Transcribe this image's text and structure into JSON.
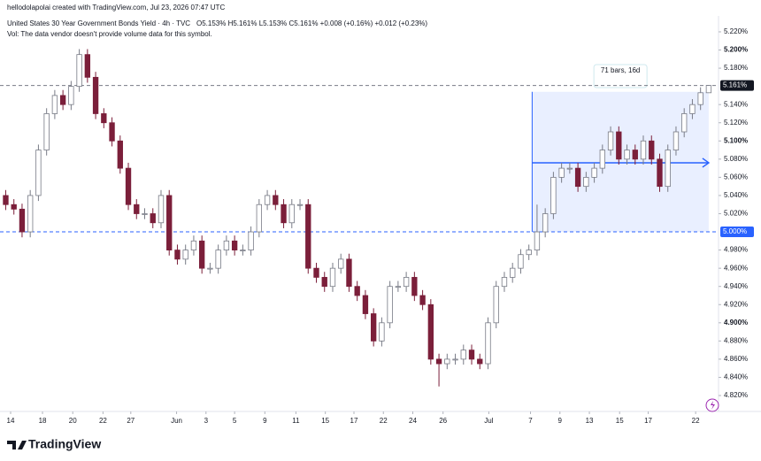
{
  "header": {
    "attribution": "hellodolapolai created with TradingView.com, Jul 23, 2026 07:47 UTC",
    "logo": "TradingView"
  },
  "chart_data": {
    "type": "candlestick",
    "title": "United States 30 Year Government Bonds Yield · 4h · TVC",
    "subtitle": "O5.153%  H5.161%  L5.153%  C5.161%  +0.008 (+0.16%)  +0.012 (+0.23%)",
    "note": "Vol: The data vendor doesn't provide volume data for this symbol.",
    "open": [
      5.04,
      5.03,
      5.025,
      5.0,
      5.04,
      5.09,
      5.13,
      5.15,
      5.14,
      5.16,
      5.195,
      5.17,
      5.13,
      5.12,
      5.1,
      5.07,
      5.03,
      5.02,
      5.02,
      5.01,
      5.04,
      4.98,
      4.97,
      4.98,
      4.99,
      4.96,
      4.96,
      4.98,
      4.99,
      4.98,
      4.98,
      5.0,
      5.03,
      5.04,
      5.03,
      5.01,
      5.03,
      5.03,
      4.96,
      4.95,
      4.94,
      4.96,
      4.97,
      4.94,
      4.93,
      4.91,
      4.88,
      4.9,
      4.94,
      4.94,
      4.95,
      4.93,
      4.92,
      4.86,
      4.855,
      4.86,
      4.86,
      4.87,
      4.86,
      4.855,
      4.9,
      4.94,
      4.95,
      4.96,
      4.975,
      4.98,
      5.0,
      5.02,
      5.06,
      5.07,
      5.07,
      5.05,
      5.06,
      5.07,
      5.09,
      5.11,
      5.08,
      5.09,
      5.08,
      5.1,
      5.08,
      5.05,
      5.09,
      5.11,
      5.13,
      5.14,
      5.153
    ],
    "high": [
      5.046,
      5.036,
      5.031,
      5.046,
      5.096,
      5.136,
      5.156,
      5.156,
      5.166,
      5.201,
      5.201,
      5.176,
      5.136,
      5.126,
      5.106,
      5.076,
      5.036,
      5.026,
      5.026,
      5.046,
      5.046,
      4.986,
      4.986,
      4.996,
      4.996,
      4.966,
      4.986,
      4.996,
      4.996,
      4.986,
      5.006,
      5.036,
      5.046,
      5.046,
      5.036,
      5.036,
      5.036,
      5.036,
      4.966,
      4.956,
      4.966,
      4.976,
      4.976,
      4.946,
      4.936,
      4.916,
      4.906,
      4.946,
      4.946,
      4.956,
      4.956,
      4.936,
      4.926,
      4.866,
      4.866,
      4.866,
      4.876,
      4.876,
      4.866,
      4.906,
      4.946,
      4.956,
      4.966,
      4.981,
      4.986,
      5.03,
      5.026,
      5.066,
      5.076,
      5.076,
      5.076,
      5.066,
      5.076,
      5.096,
      5.116,
      5.116,
      5.096,
      5.096,
      5.106,
      5.106,
      5.086,
      5.096,
      5.116,
      5.136,
      5.146,
      5.159,
      5.161
    ],
    "low": [
      5.024,
      5.019,
      4.994,
      4.994,
      5.034,
      5.084,
      5.124,
      5.134,
      5.134,
      5.154,
      5.164,
      5.124,
      5.114,
      5.094,
      5.064,
      5.024,
      5.014,
      5.014,
      5.004,
      5.004,
      4.974,
      4.964,
      4.964,
      4.974,
      4.954,
      4.954,
      4.954,
      4.974,
      4.974,
      4.974,
      4.974,
      4.994,
      5.024,
      5.024,
      5.004,
      5.004,
      5.024,
      4.954,
      4.944,
      4.934,
      4.934,
      4.954,
      4.934,
      4.924,
      4.904,
      4.874,
      4.874,
      4.894,
      4.934,
      4.934,
      4.924,
      4.914,
      4.854,
      4.83,
      4.849,
      4.854,
      4.854,
      4.854,
      4.849,
      4.849,
      4.894,
      4.934,
      4.944,
      4.954,
      4.969,
      4.974,
      4.994,
      5.014,
      5.054,
      5.064,
      5.044,
      5.044,
      5.054,
      5.064,
      5.084,
      5.074,
      5.074,
      5.074,
      5.074,
      5.074,
      5.044,
      5.044,
      5.084,
      5.104,
      5.124,
      5.134,
      5.153
    ],
    "close": [
      5.03,
      5.025,
      5.0,
      5.04,
      5.09,
      5.13,
      5.15,
      5.14,
      5.16,
      5.195,
      5.17,
      5.13,
      5.12,
      5.1,
      5.07,
      5.03,
      5.02,
      5.02,
      5.01,
      5.04,
      4.98,
      4.97,
      4.98,
      4.99,
      4.96,
      4.96,
      4.98,
      4.99,
      4.98,
      4.98,
      5.0,
      5.03,
      5.04,
      5.03,
      5.01,
      5.03,
      5.03,
      4.96,
      4.95,
      4.94,
      4.96,
      4.97,
      4.94,
      4.93,
      4.91,
      4.88,
      4.9,
      4.94,
      4.94,
      4.95,
      4.93,
      4.92,
      4.86,
      4.855,
      4.86,
      4.86,
      4.87,
      4.86,
      4.855,
      4.9,
      4.94,
      4.95,
      4.96,
      4.975,
      4.98,
      5.0,
      5.02,
      5.06,
      5.07,
      5.07,
      5.05,
      5.06,
      5.07,
      5.09,
      5.11,
      5.08,
      5.09,
      5.08,
      5.1,
      5.08,
      5.05,
      5.09,
      5.11,
      5.13,
      5.14,
      5.153,
      5.161
    ],
    "up_color": "#ffffff",
    "up_border": "#787b86",
    "down_color": "#7b1f3a",
    "xlim": [
      -0.7,
      87.2
    ],
    "xticks": [
      {
        "value": 0.6,
        "label": "14"
      },
      {
        "value": 4.5,
        "label": "18"
      },
      {
        "value": 8.2,
        "label": "20"
      },
      {
        "value": 11.9,
        "label": "22"
      },
      {
        "value": 15.3,
        "label": "27"
      },
      {
        "value": 20.9,
        "label": "Jun"
      },
      {
        "value": 24.5,
        "label": "3"
      },
      {
        "value": 28.0,
        "label": "5"
      },
      {
        "value": 31.7,
        "label": "9"
      },
      {
        "value": 35.5,
        "label": "11"
      },
      {
        "value": 39.1,
        "label": "15"
      },
      {
        "value": 42.6,
        "label": "17"
      },
      {
        "value": 46.2,
        "label": "22"
      },
      {
        "value": 49.8,
        "label": "24"
      },
      {
        "value": 53.5,
        "label": "26"
      },
      {
        "value": 59.1,
        "label": "Jul"
      },
      {
        "value": 64.2,
        "label": "7"
      },
      {
        "value": 67.8,
        "label": "9"
      },
      {
        "value": 71.4,
        "label": "13"
      },
      {
        "value": 75.1,
        "label": "15"
      },
      {
        "value": 78.6,
        "label": "17"
      },
      {
        "value": 84.4,
        "label": "22"
      }
    ],
    "ylim": [
      4.8025,
      5.255
    ],
    "yticks": [
      {
        "value": 4.82,
        "label": "4.820%"
      },
      {
        "value": 4.84,
        "label": "4.840%"
      },
      {
        "value": 4.86,
        "label": "4.860%"
      },
      {
        "value": 4.88,
        "label": "4.880%"
      },
      {
        "value": 4.9,
        "label": "4.900%"
      },
      {
        "value": 4.92,
        "label": "4.920%"
      },
      {
        "value": 4.94,
        "label": "4.940%"
      },
      {
        "value": 4.96,
        "label": "4.960%"
      },
      {
        "value": 4.98,
        "label": "4.980%"
      },
      {
        "value": 5.02,
        "label": "5.020%"
      },
      {
        "value": 5.04,
        "label": "5.040%"
      },
      {
        "value": 5.06,
        "label": "5.060%"
      },
      {
        "value": 5.08,
        "label": "5.080%"
      },
      {
        "value": 5.1,
        "label": "5.100%"
      },
      {
        "value": 5.12,
        "label": "5.120%"
      },
      {
        "value": 5.14,
        "label": "5.140%"
      },
      {
        "value": 5.18,
        "label": "5.180%"
      },
      {
        "value": 5.2,
        "label": "5.200%"
      },
      {
        "value": 5.22,
        "label": "5.220%"
      }
    ],
    "grid": false,
    "price_line": {
      "value": 5.161,
      "label": "5.161%",
      "color": "#131722"
    },
    "level_line": {
      "value": 5.0,
      "label": "5.000%",
      "color": "#2962ff"
    },
    "measure": {
      "from": 64.4,
      "to": 86.0,
      "top": 5.154,
      "bottom": 5.0,
      "mid": 5.076,
      "label": "71 bars, 16d",
      "color": "#2962ff"
    }
  }
}
